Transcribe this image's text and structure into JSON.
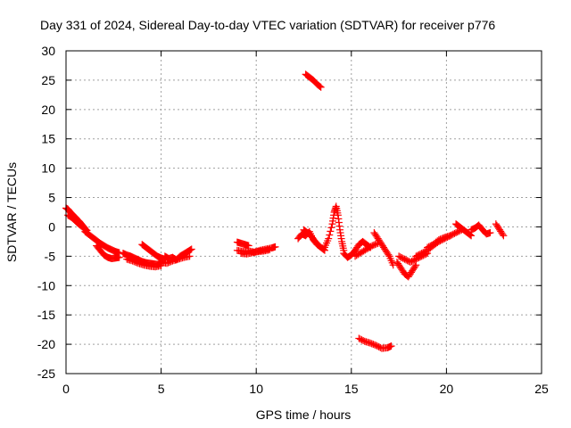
{
  "chart_data": {
    "type": "scatter",
    "title": "Day 331 of 2024, Sidereal Day-to-day VTEC variation (SDTVAR) for receiver p776",
    "xlabel": "GPS time / hours",
    "ylabel": "SDTVAR / TECUs",
    "xlim": [
      0,
      25
    ],
    "ylim": [
      -25,
      30
    ],
    "xticks": [
      0,
      5,
      10,
      15,
      20,
      25
    ],
    "yticks": [
      30,
      25,
      20,
      15,
      10,
      5,
      0,
      -5,
      -10,
      -15,
      -20,
      -25
    ],
    "grid": true,
    "marker": "plus",
    "color": "#ff0000",
    "series": [
      {
        "name": "SDTVAR",
        "segments": [
          {
            "x": [
              0.0,
              0.1,
              0.2,
              0.3,
              0.4,
              0.5,
              0.6,
              0.7,
              0.8,
              0.9,
              1.0
            ],
            "y": [
              3.2,
              3.0,
              2.6,
              2.2,
              1.9,
              1.6,
              1.2,
              0.9,
              0.5,
              0.1,
              -0.3
            ]
          },
          {
            "x": [
              0.1,
              0.3,
              0.5,
              0.7,
              0.9,
              1.1
            ],
            "y": [
              2.0,
              1.6,
              1.0,
              0.4,
              -0.1,
              -0.6
            ]
          },
          {
            "x": [
              1.0,
              1.2,
              1.4,
              1.6,
              1.8,
              2.0,
              2.2,
              2.4,
              2.6,
              2.8
            ],
            "y": [
              -0.8,
              -1.3,
              -1.8,
              -2.3,
              -2.8,
              -3.2,
              -3.6,
              -3.9,
              -4.2,
              -4.4
            ]
          },
          {
            "x": [
              1.6,
              1.8,
              2.0,
              2.2,
              2.4,
              2.6,
              2.8
            ],
            "y": [
              -3.2,
              -4.0,
              -4.8,
              -5.2,
              -5.4,
              -5.3,
              -5.2
            ]
          },
          {
            "x": [
              3.0,
              3.2,
              3.4,
              3.6,
              3.8,
              4.0,
              4.2,
              4.4,
              4.6,
              4.8,
              5.0
            ],
            "y": [
              -4.5,
              -4.8,
              -5.0,
              -5.3,
              -5.6,
              -5.9,
              -6.1,
              -6.2,
              -6.3,
              -6.4,
              -6.2
            ]
          },
          {
            "x": [
              3.2,
              3.5,
              3.8,
              4.1,
              4.4,
              4.7,
              5.0
            ],
            "y": [
              -5.5,
              -5.8,
              -6.2,
              -6.5,
              -6.7,
              -6.8,
              -6.6
            ]
          },
          {
            "x": [
              4.0,
              4.2,
              4.4,
              4.6,
              4.8,
              5.0,
              5.2
            ],
            "y": [
              -3.0,
              -3.5,
              -4.0,
              -4.5,
              -5.0,
              -5.3,
              -5.5
            ]
          },
          {
            "x": [
              5.2,
              5.4,
              5.6,
              5.8,
              6.0,
              6.2,
              6.4,
              6.6
            ],
            "y": [
              -5.0,
              -5.4,
              -5.2,
              -5.6,
              -5.0,
              -4.6,
              -4.2,
              -3.8
            ]
          },
          {
            "x": [
              5.0,
              5.3,
              5.6,
              5.9,
              6.2,
              6.5
            ],
            "y": [
              -6.0,
              -6.2,
              -5.8,
              -5.5,
              -5.2,
              -5.0
            ]
          },
          {
            "x": [
              9.0,
              9.3,
              9.6,
              9.9,
              10.2,
              10.5,
              10.8,
              11.0
            ],
            "y": [
              -4.0,
              -4.2,
              -4.1,
              -4.3,
              -4.0,
              -3.8,
              -3.6,
              -3.4
            ]
          },
          {
            "x": [
              9.0,
              9.2,
              9.4,
              9.6
            ],
            "y": [
              -2.6,
              -2.8,
              -3.0,
              -3.2
            ]
          },
          {
            "x": [
              9.2,
              9.5,
              9.8,
              10.1,
              10.4,
              10.7
            ],
            "y": [
              -4.5,
              -4.6,
              -4.4,
              -4.2,
              -4.1,
              -3.9
            ]
          },
          {
            "x": [
              12.2,
              12.4,
              12.6,
              12.8,
              13.0,
              13.2,
              13.4,
              13.6
            ],
            "y": [
              -2.0,
              -1.2,
              -1.5,
              -0.8,
              -2.2,
              -3.0,
              -3.5,
              -4.0
            ]
          },
          {
            "x": [
              12.5,
              12.7,
              12.9,
              13.1,
              13.3
            ],
            "y": [
              -0.5,
              -1.0,
              -1.6,
              -2.5,
              -3.2
            ]
          },
          {
            "x": [
              13.6,
              13.8,
              14.0,
              14.1,
              14.2,
              14.3,
              14.4,
              14.5,
              14.6
            ],
            "y": [
              -3.5,
              -2.0,
              0.5,
              2.5,
              3.5,
              2.0,
              -0.5,
              -2.5,
              -4.0
            ]
          },
          {
            "x": [
              14.6,
              14.8,
              15.0,
              15.2,
              15.4,
              15.6,
              15.8,
              16.0
            ],
            "y": [
              -4.5,
              -5.2,
              -4.8,
              -4.0,
              -3.0,
              -2.5,
              -3.0,
              -3.5
            ]
          },
          {
            "x": [
              15.2,
              15.5,
              15.8,
              16.1,
              16.4
            ],
            "y": [
              -5.0,
              -4.4,
              -3.8,
              -3.2,
              -2.8
            ]
          },
          {
            "x": [
              16.2,
              16.4,
              16.6,
              16.8,
              17.0,
              17.2
            ],
            "y": [
              -1.0,
              -2.0,
              -3.0,
              -4.0,
              -5.0,
              -6.5
            ]
          },
          {
            "x": [
              17.4,
              17.6,
              17.8,
              18.0,
              18.2,
              18.4
            ],
            "y": [
              -6.0,
              -7.0,
              -8.0,
              -8.5,
              -7.5,
              -6.5
            ]
          },
          {
            "x": [
              17.5,
              17.8,
              18.1,
              18.4,
              18.7,
              19.0
            ],
            "y": [
              -5.0,
              -5.5,
              -6.0,
              -5.5,
              -5.0,
              -4.5
            ]
          },
          {
            "x": [
              18.4,
              18.7,
              19.0,
              19.3,
              19.6,
              19.9,
              20.2,
              20.5,
              20.8
            ],
            "y": [
              -5.0,
              -4.5,
              -4.0,
              -3.2,
              -2.5,
              -2.0,
              -1.5,
              -1.0,
              -0.5
            ]
          },
          {
            "x": [
              19.0,
              19.3,
              19.6,
              19.9,
              20.2
            ],
            "y": [
              -3.5,
              -3.0,
              -2.2,
              -1.8,
              -1.5
            ]
          },
          {
            "x": [
              20.5,
              20.7,
              20.9,
              21.1,
              21.3
            ],
            "y": [
              0.5,
              0.0,
              -0.5,
              -1.0,
              -1.5
            ]
          },
          {
            "x": [
              21.3,
              21.5,
              21.7,
              21.9,
              22.1,
              22.3
            ],
            "y": [
              -0.5,
              -0.2,
              0.3,
              -0.5,
              -1.2,
              -1.0
            ]
          },
          {
            "x": [
              22.6,
              22.8,
              23.0
            ],
            "y": [
              0.5,
              -0.5,
              -1.5
            ]
          },
          {
            "x": [
              12.6,
              12.8,
              13.0,
              13.2,
              13.4
            ],
            "y": [
              26.0,
              25.5,
              25.0,
              24.3,
              23.8
            ]
          },
          {
            "x": [
              15.4,
              15.7,
              16.0,
              16.3,
              16.6,
              16.9,
              17.1
            ],
            "y": [
              -19.0,
              -19.5,
              -19.8,
              -20.2,
              -20.7,
              -20.6,
              -20.3
            ]
          }
        ]
      }
    ]
  }
}
